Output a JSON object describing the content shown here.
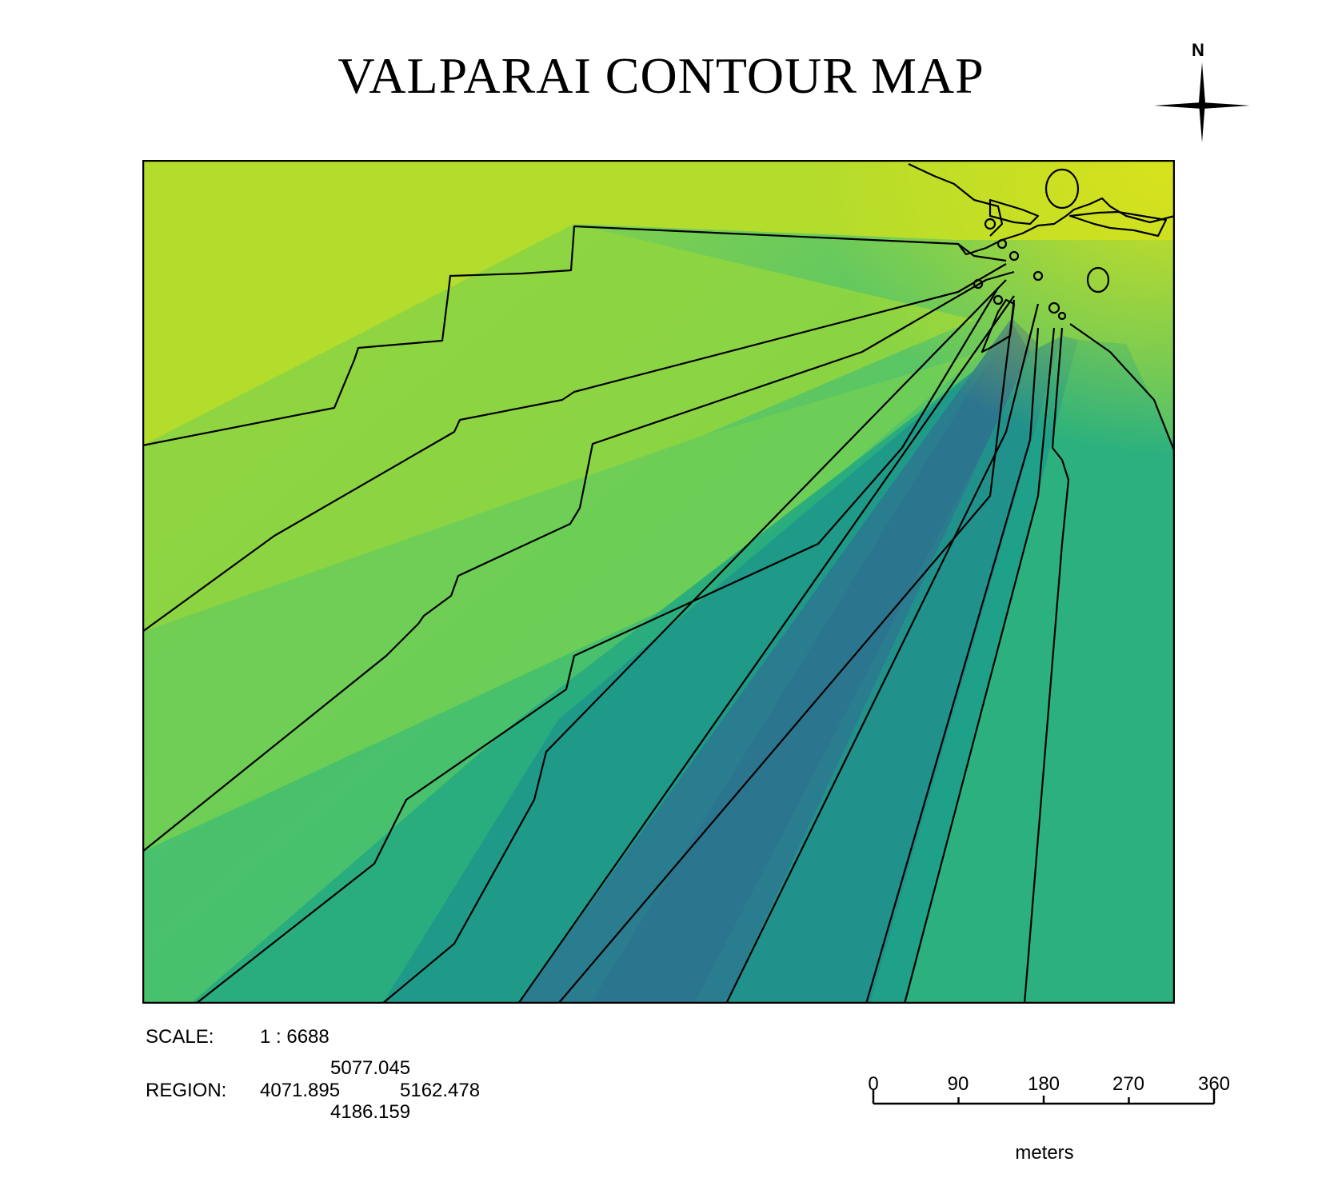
{
  "title": "VALPARAI CONTOUR MAP",
  "north_arrow": {
    "label": "N"
  },
  "map": {
    "colormap": [
      "#d2e21b",
      "#a5db36",
      "#6ccd5a",
      "#3bbb75",
      "#22a884",
      "#1f968b",
      "#25848e",
      "#2c728e"
    ],
    "contour_line_color": "#000000"
  },
  "scale": {
    "label": "SCALE:",
    "value": "1 : 6688"
  },
  "region": {
    "label": "REGION:",
    "north": "5077.045",
    "west": "4071.895",
    "east": "5162.478",
    "south": "4186.159"
  },
  "scalebar": {
    "ticks": [
      "0",
      "90",
      "180",
      "270",
      "360"
    ],
    "units": "meters"
  }
}
